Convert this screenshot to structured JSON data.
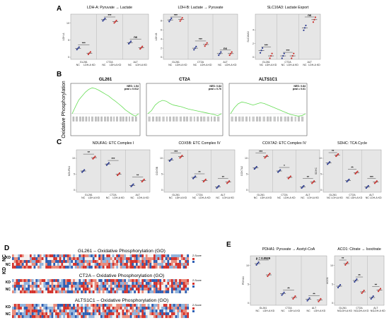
{
  "colors": {
    "nc": "#2b3a8f",
    "kd": "#c9302c",
    "panel_bg": "#e6e6e6",
    "gsea_line": "#66dd55",
    "heat_red": "#d4322c",
    "heat_blue": "#2f5fb3",
    "heat_white": "#f4f0ee"
  },
  "panel_labels": [
    "A",
    "B",
    "C",
    "D",
    "E"
  ],
  "legend": {
    "zscore": "Z-Score",
    "row_nc": "NC",
    "row_kd": "KD"
  },
  "chart_data": [
    {
      "id": "A1",
      "type": "scatter",
      "title": "LDH-A: Pyruvate → Lactate",
      "ylabel": "LDH-A",
      "groups": [
        "GL261",
        "CT2A",
        "ALT"
      ],
      "conditions": [
        "NC",
        "LDH-A KD"
      ],
      "ylim": [
        0,
        12
      ],
      "yticks": [
        0,
        5,
        10
      ],
      "values": [
        [
          2.6,
          1.2
        ],
        [
          11.0,
          10.4
        ],
        [
          4.3,
          2.8
        ]
      ],
      "sig": [
        "***",
        "***",
        "ns"
      ]
    },
    {
      "id": "A2",
      "type": "scatter",
      "title": "LDH-B: Lactate → Pyruvate",
      "ylabel": "LDH-B",
      "groups": [
        "GL261",
        "CT2A",
        "ALT"
      ],
      "conditions": [
        "NC",
        "LDH-A KD"
      ],
      "ylim": [
        0,
        9
      ],
      "yticks": [
        0,
        2,
        4,
        6,
        8
      ],
      "values": [
        [
          8.2,
          8.3
        ],
        [
          2.0,
          2.8
        ],
        [
          0.8,
          0.8
        ]
      ],
      "sig": [
        "***",
        "***",
        "ns"
      ]
    },
    {
      "id": "A3",
      "type": "scatter",
      "title": "SLC16A3: Lactate Export",
      "ylabel": "SLC16A3",
      "groups": [
        "GL261",
        "CT2A",
        "ALT"
      ],
      "conditions": [
        "NC",
        "LDH-A KD"
      ],
      "ylim": [
        0,
        6
      ],
      "yticks": [
        0,
        2,
        4
      ],
      "values": [
        [
          1.0,
          0.2
        ],
        [
          0.2,
          0.2
        ],
        [
          4.3,
          5.5
        ]
      ],
      "sig": [
        "***",
        "***",
        "ns"
      ]
    },
    {
      "id": "B1",
      "type": "line",
      "title": "GL261",
      "ylabel": "Oxidative Phosphorylation",
      "nes": "NES: 1.54",
      "pval": "pval = 0.012",
      "es": [
        0,
        0.18,
        0.35,
        0.45,
        0.55,
        0.62,
        0.66,
        0.64,
        0.6,
        0.55,
        0.5,
        0.45,
        0.38,
        0.32,
        0.25,
        0.18,
        0.1,
        0.04,
        -0.02,
        -0.06,
        0
      ]
    },
    {
      "id": "B2",
      "type": "line",
      "title": "CT2A",
      "nes": "NES: 0.84",
      "pval": "pval = 0.76",
      "es": [
        0,
        0.08,
        0.22,
        0.3,
        0.34,
        0.32,
        0.26,
        0.22,
        0.2,
        0.18,
        0.15,
        0.12,
        0.1,
        0.08,
        0.06,
        0.04,
        0.02,
        0,
        -0.02,
        -0.05,
        0
      ]
    },
    {
      "id": "B3",
      "type": "line",
      "title": "ALTS1C1",
      "nes": "NES: 0.84",
      "pval": "pval = 0.61",
      "es": [
        0,
        0.15,
        0.25,
        0.3,
        0.28,
        0.25,
        0.22,
        0.25,
        0.28,
        0.26,
        0.22,
        0.18,
        0.14,
        0.1,
        0.06,
        0.02,
        -0.02,
        -0.04,
        -0.06,
        -0.05,
        0
      ]
    },
    {
      "id": "C1",
      "type": "scatter",
      "title": "NDUFA1: ETC Complex I",
      "ylabel": "NDUFA1",
      "groups": [
        "GL261",
        "CT2A",
        "ALT"
      ],
      "conditions": [
        "NC",
        "LDH-A KD"
      ],
      "ylim": [
        0,
        12
      ],
      "yticks": [
        0,
        5,
        10
      ],
      "values": [
        [
          6.0,
          10.2
        ],
        [
          8.2,
          5.0
        ],
        [
          1.5,
          3.0
        ]
      ],
      "sig": [
        "**",
        "***",
        "**"
      ]
    },
    {
      "id": "C2",
      "type": "scatter",
      "title": "COX5B: ETC Complex IV",
      "ylabel": "COX5B",
      "groups": [
        "GL261",
        "CT2A",
        "ALT"
      ],
      "conditions": [
        "NC",
        "LDH-A KD"
      ],
      "ylim": [
        0,
        12
      ],
      "yticks": [
        0,
        5,
        10
      ],
      "values": [
        [
          9.5,
          10.5
        ],
        [
          4.0,
          3.0
        ],
        [
          1.0,
          2.5
        ]
      ],
      "sig": [
        "***",
        "**",
        "**"
      ]
    },
    {
      "id": "C3",
      "type": "scatter",
      "title": "COX7A2: ETC Complex IV",
      "ylabel": "COX7A2",
      "groups": [
        "GL261",
        "CT2A",
        "ALT"
      ],
      "conditions": [
        "NC",
        "LDH-A KD"
      ],
      "ylim": [
        0,
        12
      ],
      "yticks": [
        0,
        5,
        10
      ],
      "values": [
        [
          7.0,
          10.5
        ],
        [
          6.0,
          4.0
        ],
        [
          1.0,
          2.5
        ]
      ],
      "sig": [
        "***",
        "*",
        "**"
      ]
    },
    {
      "id": "C4",
      "type": "scatter",
      "title": "SDHC: TCA Cycle",
      "ylabel": "SDHC",
      "groups": [
        "GL261",
        "CT2A",
        "ALT"
      ],
      "conditions": [
        "NC",
        "LDH-A KD"
      ],
      "ylim": [
        0,
        12
      ],
      "yticks": [
        0,
        5,
        10
      ],
      "values": [
        [
          8.5,
          11.0
        ],
        [
          3.0,
          5.5
        ],
        [
          1.0,
          2.5
        ]
      ],
      "sig": [
        "**",
        "**",
        "***"
      ]
    },
    {
      "id": "D1",
      "type": "heatmap",
      "title": "GL261 – Oxidative Phosphorylation (GO)",
      "rows": [
        "NC",
        "KD"
      ],
      "columns": 90
    },
    {
      "id": "D2",
      "type": "heatmap",
      "title": "CT2A – Oxidative Phosphorylation (GO)",
      "rows": [
        "NC",
        "KD"
      ],
      "columns": 90
    },
    {
      "id": "D3",
      "type": "heatmap",
      "title": "ALTS1C1 – Oxidative Phosphorylation (GO)",
      "rows": [
        "NC",
        "KD"
      ],
      "columns": 90
    },
    {
      "id": "E1",
      "type": "scatter",
      "title": "PDHA1: Pyruvate → Acetyl-CoA",
      "ylabel": "PDHA1",
      "groups": [
        "GL261",
        "CT2A",
        "ALT"
      ],
      "conditions": [
        "NC",
        "LDH-A KD"
      ],
      "ylim": [
        0,
        12
      ],
      "yticks": [
        0,
        5,
        10
      ],
      "values": [
        [
          10.5,
          7.5
        ],
        [
          2.5,
          1.5
        ],
        [
          1.0,
          0.8
        ]
      ],
      "sig": [
        "p = 0.0529",
        "**",
        "**"
      ]
    },
    {
      "id": "E2",
      "type": "scatter",
      "title": "ACO1: Citrate → Isocitrate",
      "ylabel": "ACO1",
      "groups": [
        "GL261",
        "CT2A",
        "ALT"
      ],
      "conditions": [
        "NC",
        "LDH-A KD"
      ],
      "ylim": [
        0,
        12
      ],
      "yticks": [
        0,
        5,
        10
      ],
      "values": [
        [
          4.5,
          10.5
        ],
        [
          6.0,
          3.0
        ],
        [
          1.5,
          3.5
        ]
      ],
      "sig": [
        "**",
        "**",
        "**"
      ]
    }
  ]
}
